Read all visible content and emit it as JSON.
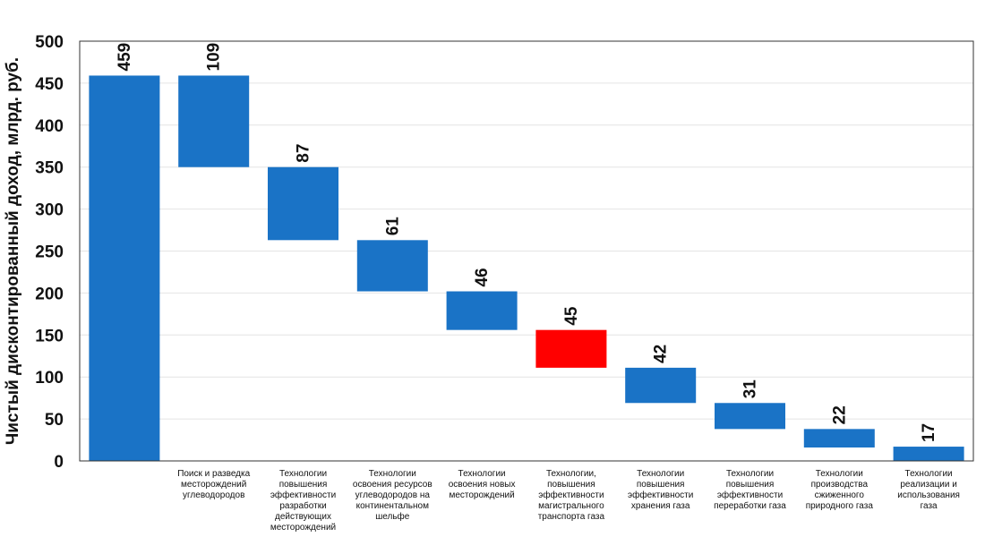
{
  "chart_data": {
    "type": "bar",
    "subtype": "waterfall",
    "ylabel": "Чистый дисконтированный доход, млрд. руб.",
    "ylim": [
      0,
      500
    ],
    "yticks": [
      0,
      50,
      100,
      150,
      200,
      250,
      300,
      350,
      400,
      450,
      500
    ],
    "grid": true,
    "legend": "none",
    "colors": {
      "default": "#1a73c6",
      "highlight": "#ff0000"
    },
    "categories": [
      "",
      "Поиск и разведка\nместорождений\nуглеводородов",
      "Технологии\nповышения\nэффективности\nразработки\nдействующих\nместорождений",
      "Технологии\nосвоения ресурсов\nуглеводородов на\nконтинентальном\nшельфе",
      "Технологии\nосвоения новых\nместорождений",
      "Технологии,\nповышения\nэффективности\nмагистрального\nтранспорта газа",
      "Технологии\nповышения\nэффективности\nхранения газа",
      "Технологии\nповышения\nэффективности\nпереработки газа",
      "Технологии\nпроизводства\nсжиженного\nприродного газа",
      "Технологии\nреализации и\nиспользования\nгаза"
    ],
    "bars": [
      {
        "label": "459",
        "low": 0,
        "high": 459,
        "color": "#1a73c6"
      },
      {
        "label": "109",
        "low": 350,
        "high": 459,
        "color": "#1a73c6"
      },
      {
        "label": "87",
        "low": 263,
        "high": 350,
        "color": "#1a73c6"
      },
      {
        "label": "61",
        "low": 202,
        "high": 263,
        "color": "#1a73c6"
      },
      {
        "label": "46",
        "low": 156,
        "high": 202,
        "color": "#1a73c6"
      },
      {
        "label": "45",
        "low": 111,
        "high": 156,
        "color": "#ff0000"
      },
      {
        "label": "42",
        "low": 69,
        "high": 111,
        "color": "#1a73c6"
      },
      {
        "label": "31",
        "low": 38,
        "high": 69,
        "color": "#1a73c6"
      },
      {
        "label": "22",
        "low": 16,
        "high": 38,
        "color": "#1a73c6"
      },
      {
        "label": "17",
        "low": 0,
        "high": 17,
        "color": "#1a73c6"
      }
    ]
  }
}
